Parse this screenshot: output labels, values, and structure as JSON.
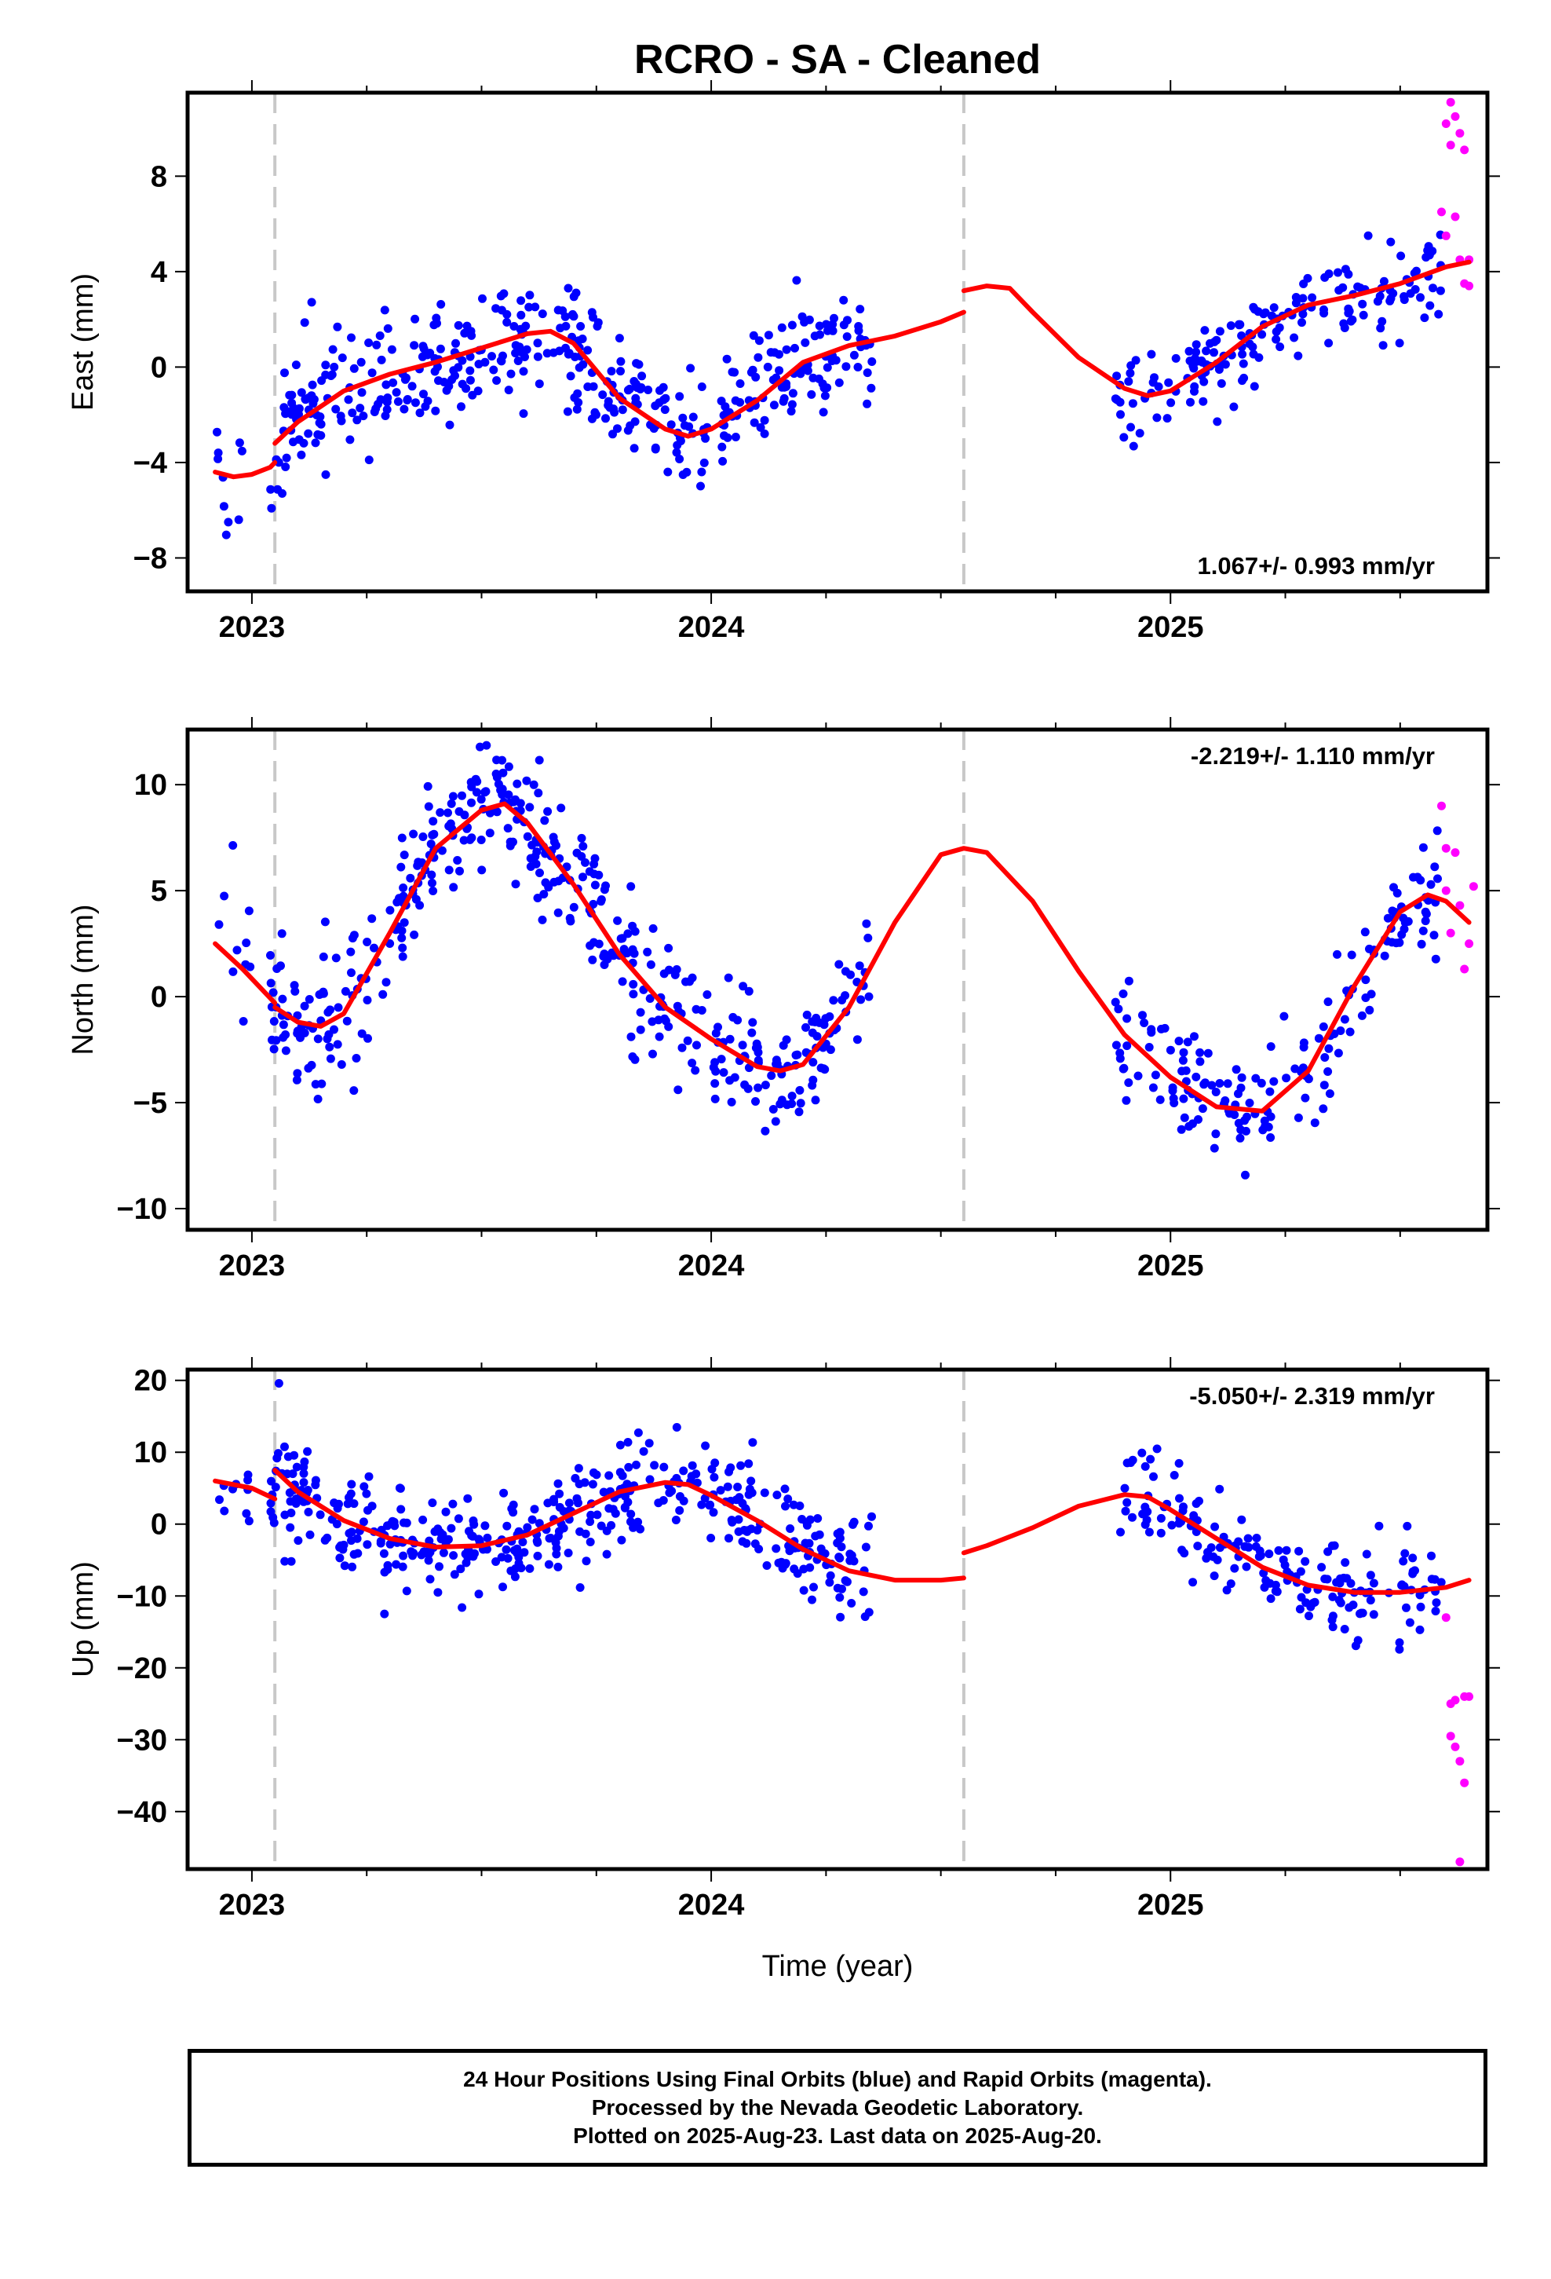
{
  "colors": {
    "final_points": "#0000ff",
    "rapid_points": "#ff00ff",
    "model_curve": "#ff0000",
    "equipment_change_line": "#c8c8c8",
    "frame": "#000000"
  },
  "footer": {
    "line1": "24 Hour Positions Using Final Orbits (blue) and Rapid Orbits (magenta).",
    "line2": "Processed by the Nevada Geodetic Laboratory.",
    "line3": "Plotted on 2025-Aug-23. Last data on 2025-Aug-20."
  },
  "chart_data": [
    {
      "type": "scatter",
      "title": "RCRO  - SA - Cleaned",
      "ylabel": "East (mm)",
      "xlabel": "",
      "rate_label": "1.067+/- 0.993 mm/yr",
      "rate_position": "bottom-right",
      "xlim": [
        2022.86,
        2025.69
      ],
      "ylim": [
        -9.4,
        11.5
      ],
      "x_ticks": [
        2023,
        2024,
        2025
      ],
      "y_ticks": [
        -8,
        -4,
        0,
        4,
        8
      ],
      "vlines": [
        2023.05,
        2024.55
      ],
      "seed": 11,
      "series": [
        {
          "kind": "final",
          "x_range": [
            2022.92,
            2023.0
          ],
          "center": -4.5,
          "spread": 1.4,
          "n": 10
        },
        {
          "kind": "final",
          "x_range": [
            2023.04,
            2024.35
          ],
          "spread": 1.3,
          "n": 420
        },
        {
          "kind": "final",
          "x_range": [
            2024.88,
            2025.59
          ],
          "spread": 1.1,
          "n": 170
        },
        {
          "kind": "rapid",
          "x": [
            2025.59,
            2025.6,
            2025.6,
            2025.61,
            2025.61,
            2025.62,
            2025.62,
            2025.63,
            2025.63,
            2025.64,
            2025.64,
            2025.65,
            2025.65
          ],
          "y": [
            6.5,
            10.2,
            5.5,
            11.1,
            9.3,
            6.3,
            10.5,
            9.8,
            4.5,
            9.1,
            3.5,
            4.5,
            3.4
          ]
        }
      ],
      "model": {
        "segments": [
          {
            "x": [
              2022.92,
              2022.96,
              2023.0,
              2023.04,
              2023.05
            ],
            "y": [
              -4.4,
              -4.6,
              -4.5,
              -4.2,
              -4.0
            ]
          },
          {
            "x": [
              2023.05,
              2023.1,
              2023.2,
              2023.3,
              2023.4,
              2023.5,
              2023.6,
              2023.65,
              2023.7,
              2023.8,
              2023.9,
              2023.95,
              2024.0,
              2024.1,
              2024.2,
              2024.3,
              2024.4,
              2024.5,
              2024.55
            ],
            "y": [
              -3.2,
              -2.3,
              -1.0,
              -0.3,
              0.2,
              0.8,
              1.4,
              1.5,
              1.0,
              -1.3,
              -2.6,
              -2.9,
              -2.6,
              -1.4,
              0.2,
              0.9,
              1.3,
              1.9,
              2.3
            ]
          },
          {
            "x": [
              2024.55,
              2024.6,
              2024.65,
              2024.7,
              2024.8,
              2024.9,
              2024.95,
              2025.0,
              2025.1,
              2025.2,
              2025.3,
              2025.4,
              2025.5,
              2025.6,
              2025.65
            ],
            "y": [
              3.2,
              3.4,
              3.3,
              2.3,
              0.4,
              -0.9,
              -1.2,
              -1.0,
              0.2,
              1.7,
              2.6,
              3.0,
              3.5,
              4.2,
              4.4
            ]
          }
        ]
      }
    },
    {
      "type": "scatter",
      "title": "",
      "ylabel": "North (mm)",
      "xlabel": "",
      "rate_label": "-2.219+/- 1.110 mm/yr",
      "rate_position": "top-right",
      "xlim": [
        2022.86,
        2025.69
      ],
      "ylim": [
        -11,
        12.6
      ],
      "x_ticks": [
        2023,
        2024,
        2025
      ],
      "y_ticks": [
        -10,
        -5,
        0,
        5,
        10
      ],
      "vlines": [
        2023.05,
        2024.55
      ],
      "seed": 22,
      "series": [
        {
          "kind": "final",
          "x_range": [
            2022.92,
            2023.0
          ],
          "center": 2.0,
          "spread": 2.3,
          "n": 10
        },
        {
          "kind": "final",
          "x_range": [
            2023.04,
            2024.35
          ],
          "spread": 1.5,
          "n": 420
        },
        {
          "kind": "final",
          "x_range": [
            2024.88,
            2025.59
          ],
          "spread": 1.4,
          "n": 170
        },
        {
          "kind": "rapid",
          "x": [
            2025.59,
            2025.6,
            2025.6,
            2025.61,
            2025.62,
            2025.63,
            2025.64,
            2025.65,
            2025.66
          ],
          "y": [
            9.0,
            7.0,
            5.0,
            3.0,
            6.8,
            4.3,
            1.3,
            2.5,
            5.2
          ]
        }
      ],
      "model": {
        "segments": [
          {
            "x": [
              2022.92,
              2022.98,
              2023.05
            ],
            "y": [
              2.5,
              1.3,
              -0.3
            ]
          },
          {
            "x": [
              2023.05,
              2023.1,
              2023.15,
              2023.2,
              2023.3,
              2023.4,
              2023.5,
              2023.55,
              2023.6,
              2023.7,
              2023.8,
              2023.9,
              2024.0,
              2024.1,
              2024.15,
              2024.2,
              2024.3,
              2024.4,
              2024.5,
              2024.55,
              2024.6,
              2024.7,
              2024.8,
              2024.9,
              2025.0,
              2025.1,
              2025.2,
              2025.3,
              2025.4,
              2025.5,
              2025.56,
              2025.6,
              2025.65
            ],
            "y": [
              -0.5,
              -1.2,
              -1.4,
              -0.8,
              3.0,
              7.0,
              8.8,
              9.1,
              8.2,
              5.3,
              2.0,
              -0.5,
              -2.0,
              -3.3,
              -3.5,
              -3.2,
              -0.5,
              3.5,
              6.7,
              7.0,
              6.8,
              4.5,
              1.2,
              -1.8,
              -3.8,
              -5.2,
              -5.4,
              -3.5,
              0.5,
              4.0,
              4.8,
              4.5,
              3.5
            ]
          }
        ]
      }
    },
    {
      "type": "scatter",
      "title": "",
      "ylabel": "Up (mm)",
      "xlabel": "Time (year)",
      "rate_label": "-5.050+/- 2.319 mm/yr",
      "rate_position": "top-right",
      "xlim": [
        2022.86,
        2025.69
      ],
      "ylim": [
        -48,
        21.5
      ],
      "x_ticks": [
        2023,
        2024,
        2025
      ],
      "y_ticks": [
        -40,
        -30,
        -20,
        -10,
        0,
        10,
        20
      ],
      "vlines": [
        2023.05,
        2024.55
      ],
      "seed": 33,
      "series": [
        {
          "kind": "final",
          "x_range": [
            2022.92,
            2023.0
          ],
          "center": 6.0,
          "spread": 3.0,
          "n": 10
        },
        {
          "kind": "final",
          "x_range": [
            2023.04,
            2024.35
          ],
          "spread": 3.5,
          "n": 420
        },
        {
          "kind": "final",
          "x_range": [
            2024.88,
            2025.59
          ],
          "spread": 3.2,
          "n": 170
        },
        {
          "kind": "rapid",
          "x": [
            2025.6,
            2025.61,
            2025.61,
            2025.62,
            2025.62,
            2025.63,
            2025.63,
            2025.64,
            2025.64,
            2025.65
          ],
          "y": [
            -13.0,
            -25.0,
            -29.5,
            -24.5,
            -31.0,
            -33.0,
            -47.0,
            -24.0,
            -36.0,
            -24.0
          ]
        }
      ],
      "model": {
        "segments": [
          {
            "x": [
              2022.92,
              2023.0,
              2023.05
            ],
            "y": [
              6.0,
              5.0,
              3.5
            ]
          },
          {
            "x": [
              2023.05,
              2023.1,
              2023.2,
              2023.3,
              2023.4,
              2023.5,
              2023.6,
              2023.7,
              2023.8,
              2023.9,
              2023.95,
              2024.0,
              2024.1,
              2024.2,
              2024.3,
              2024.4,
              2024.5,
              2024.55
            ],
            "y": [
              7.5,
              4.5,
              0.5,
              -2.0,
              -3.2,
              -3.0,
              -1.5,
              1.5,
              4.5,
              5.8,
              5.5,
              4.0,
              0.5,
              -3.5,
              -6.5,
              -7.8,
              -7.8,
              -7.5
            ]
          },
          {
            "x": [
              2024.55,
              2024.6,
              2024.7,
              2024.8,
              2024.9,
              2024.95,
              2025.0,
              2025.1,
              2025.2,
              2025.3,
              2025.4,
              2025.5,
              2025.6,
              2025.65
            ],
            "y": [
              -4.0,
              -3.0,
              -0.5,
              2.5,
              4.1,
              3.8,
              2.0,
              -2.0,
              -6.0,
              -8.5,
              -9.5,
              -9.5,
              -8.8,
              -7.8
            ]
          }
        ]
      }
    }
  ]
}
